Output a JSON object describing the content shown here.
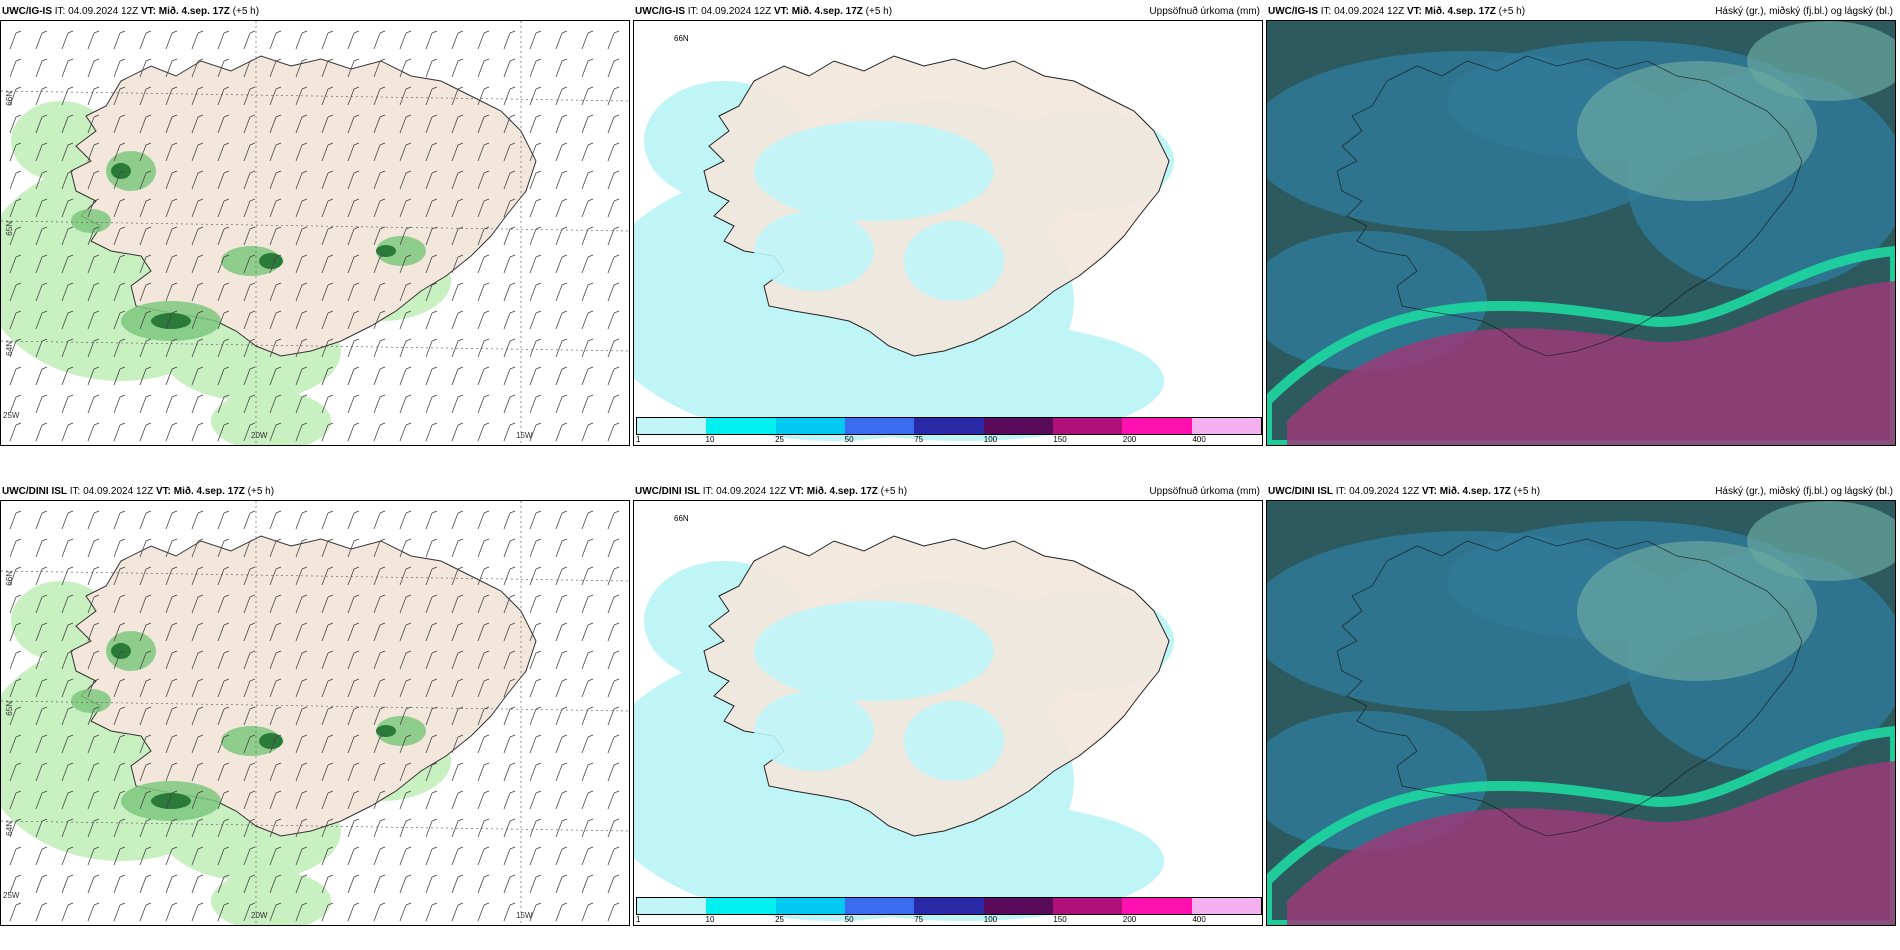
{
  "panels": [
    {
      "model": "UWC/IG-IS",
      "it_label": "IT:",
      "it_value": "04.09.2024 12Z",
      "vt_label": "VT:",
      "vt_value": "Mið. 4.sep. 17Z",
      "lead": "(+5 h)",
      "product": "",
      "type": "wind-precip"
    },
    {
      "model": "UWC/IG-IS",
      "it_label": "IT:",
      "it_value": "04.09.2024 12Z",
      "vt_label": "VT:",
      "vt_value": "Mið. 4.sep. 17Z",
      "lead": "(+5 h)",
      "product": "Uppsöfnuð úrkoma (mm)",
      "type": "accum"
    },
    {
      "model": "UWC/IG-IS",
      "it_label": "IT:",
      "it_value": "04.09.2024 12Z",
      "vt_label": "VT:",
      "vt_value": "Mið. 4.sep. 17Z",
      "lead": "(+5 h)",
      "product": "Háský (gr.), miðský (fj.bl.) og lágský (bl.)",
      "type": "cloud"
    },
    {
      "model": "UWC/DINI ISL",
      "it_label": "IT:",
      "it_value": "04.09.2024 12Z",
      "vt_label": "VT:",
      "vt_value": "Mið. 4.sep. 17Z",
      "lead": "(+5 h)",
      "product": "",
      "type": "wind-precip"
    },
    {
      "model": "UWC/DINI ISL",
      "it_label": "IT:",
      "it_value": "04.09.2024 12Z",
      "vt_label": "VT:",
      "vt_value": "Mið. 4.sep. 17Z",
      "lead": "(+5 h)",
      "product": "Uppsöfnuð úrkoma (mm)",
      "type": "accum"
    },
    {
      "model": "UWC/DINI ISL",
      "it_label": "IT:",
      "it_value": "04.09.2024 12Z",
      "vt_label": "VT:",
      "vt_value": "Mið. 4.sep. 17Z",
      "lead": "(+5 h)",
      "product": "Háský (gr.), miðský (fj.bl.) og lágský (bl.)",
      "type": "cloud"
    }
  ],
  "axis_labels": {
    "lat_66": "66N",
    "lat_65": "65N",
    "lat_64": "64N",
    "lon_25": "25W",
    "lon_20": "20W",
    "lon_15": "15W"
  },
  "colorbar": {
    "ticks": [
      "1",
      "10",
      "25",
      "50",
      "75",
      "100",
      "150",
      "200",
      "400"
    ],
    "colors": [
      "#bff5f7",
      "#00f0f0",
      "#00c8f0",
      "#3a6cf0",
      "#2a2aa8",
      "#5a0a5a",
      "#b0107a",
      "#ff10b0",
      "#f5b0f0"
    ]
  },
  "colors": {
    "land": "#f3e7dc",
    "precip_light": "#c8f0c0",
    "precip_mid": "#7ec87e",
    "precip_dark": "#2a7a3a",
    "accum_fill": "#bff5f7",
    "cloud_base": "#2d5a5e",
    "cloud_blue": "#2f7a9a",
    "cloud_light": "#6aa8a0",
    "cloud_green": "#1ed8a0",
    "cloud_magenta": "#9a3a78"
  }
}
